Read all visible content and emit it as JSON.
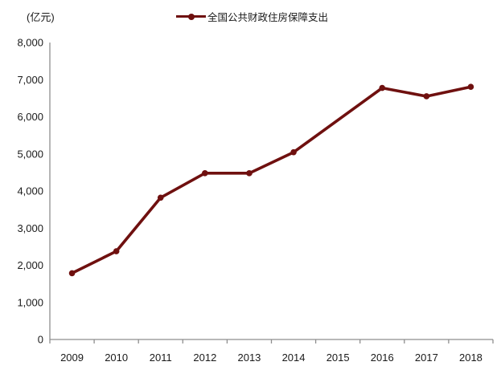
{
  "chart": {
    "unit_label": "(亿元)"
  },
  "chart_data": {
    "type": "line",
    "title": "",
    "categories": [
      "2009",
      "2010",
      "2011",
      "2012",
      "2013",
      "2014",
      "2015",
      "2016",
      "2017",
      "2018"
    ],
    "series": [
      {
        "name": "全国公共财政住房保障支出",
        "color": "#6F100F",
        "marker": "circle",
        "values": [
          1786,
          2377,
          3821,
          4480,
          4479,
          5044,
          null,
          6776,
          6552,
          6806
        ]
      }
    ],
    "xlabel": "",
    "ylabel": "(亿元)",
    "ylim": [
      0,
      8000
    ],
    "ytick_interval": 1000,
    "ytick_labels": [
      "0",
      "1,000",
      "2,000",
      "3,000",
      "4,000",
      "5,000",
      "6,000",
      "7,000",
      "8,000"
    ],
    "grid": false,
    "legend_position": "top-center",
    "connect_gaps": true,
    "colors": {
      "axis": "#8E8E8E",
      "tick_text": "#1A1A1A",
      "background": "#FFFFFF"
    }
  }
}
